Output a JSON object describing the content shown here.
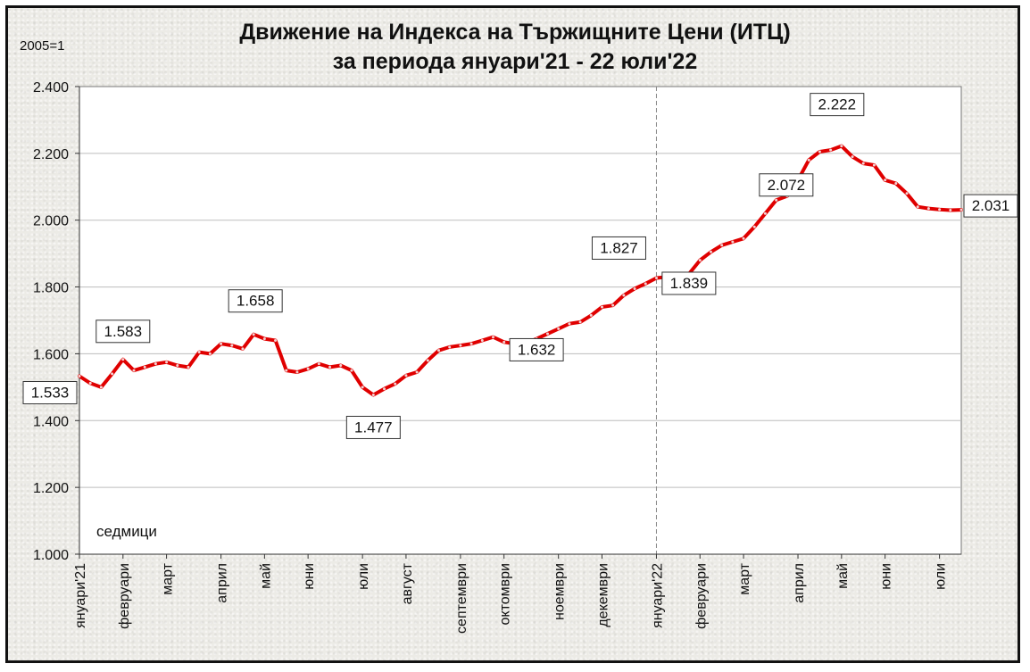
{
  "chart_data": {
    "type": "line",
    "title": "Движение на Индекса на Тържищните Цени (ИТЦ)",
    "subtitle": "за периода януари'21 - 22 юли'22",
    "unit_label": "2005=1",
    "xlabel": "седмици",
    "ylim": [
      1.0,
      2.4
    ],
    "y_ticks": [
      "1.000",
      "1.200",
      "1.400",
      "1.600",
      "1.800",
      "2.000",
      "2.200",
      "2.400"
    ],
    "grid": true,
    "year_divider_week": 53,
    "x_ticks": [
      {
        "label": "януари'21",
        "week": 0
      },
      {
        "label": "февруари",
        "week": 4
      },
      {
        "label": "март",
        "week": 8
      },
      {
        "label": "април",
        "week": 13
      },
      {
        "label": "май",
        "week": 17
      },
      {
        "label": "юни",
        "week": 21
      },
      {
        "label": "юли",
        "week": 26
      },
      {
        "label": "август",
        "week": 30
      },
      {
        "label": "септември",
        "week": 35
      },
      {
        "label": "октомври",
        "week": 39
      },
      {
        "label": "ноември",
        "week": 44
      },
      {
        "label": "декември",
        "week": 48
      },
      {
        "label": "януари'22",
        "week": 53
      },
      {
        "label": "февруари",
        "week": 57
      },
      {
        "label": "март",
        "week": 61
      },
      {
        "label": "април",
        "week": 66
      },
      {
        "label": "май",
        "week": 70
      },
      {
        "label": "юни",
        "week": 74
      },
      {
        "label": "юли",
        "week": 79
      }
    ],
    "series": [
      {
        "color": "#e00000",
        "weeks": [
          0,
          1,
          2,
          3,
          4,
          5,
          6,
          7,
          8,
          9,
          10,
          11,
          12,
          13,
          14,
          15,
          16,
          17,
          18,
          19,
          20,
          21,
          22,
          23,
          24,
          25,
          26,
          27,
          28,
          29,
          30,
          31,
          32,
          33,
          34,
          35,
          36,
          37,
          38,
          39,
          40,
          41,
          42,
          43,
          44,
          45,
          46,
          47,
          48,
          49,
          50,
          51,
          52,
          53,
          54,
          55,
          56,
          57,
          58,
          59,
          60,
          61,
          62,
          63,
          64,
          65,
          66,
          67,
          68,
          69,
          70,
          71,
          72,
          73,
          74,
          75,
          76,
          77,
          78,
          79,
          80,
          81
        ],
        "values": [
          1.533,
          1.512,
          1.5,
          1.54,
          1.583,
          1.55,
          1.56,
          1.57,
          1.575,
          1.565,
          1.56,
          1.605,
          1.6,
          1.63,
          1.625,
          1.615,
          1.658,
          1.645,
          1.64,
          1.55,
          1.545,
          1.555,
          1.57,
          1.56,
          1.565,
          1.55,
          1.5,
          1.477,
          1.495,
          1.51,
          1.535,
          1.545,
          1.58,
          1.61,
          1.62,
          1.625,
          1.63,
          1.64,
          1.65,
          1.635,
          1.63,
          1.632,
          1.645,
          1.66,
          1.675,
          1.69,
          1.695,
          1.715,
          1.74,
          1.745,
          1.775,
          1.795,
          1.81,
          1.827,
          1.83,
          1.839,
          1.84,
          1.88,
          1.905,
          1.925,
          1.935,
          1.945,
          1.98,
          2.02,
          2.06,
          2.072,
          2.12,
          2.18,
          2.205,
          2.21,
          2.222,
          2.19,
          2.17,
          2.165,
          2.12,
          2.11,
          2.08,
          2.04,
          2.035,
          2.032,
          2.03,
          2.031
        ]
      }
    ],
    "annotations": [
      {
        "text": "1.533",
        "week": 0,
        "value": 1.533
      },
      {
        "text": "1.583",
        "week": 4,
        "value": 1.583
      },
      {
        "text": "1.658",
        "week": 16,
        "value": 1.658
      },
      {
        "text": "1.477",
        "week": 27,
        "value": 1.477
      },
      {
        "text": "1.632",
        "week": 41,
        "value": 1.632
      },
      {
        "text": "1.827",
        "week": 53,
        "value": 1.827
      },
      {
        "text": "1.839",
        "week": 55,
        "value": 1.839
      },
      {
        "text": "2.072",
        "week": 65,
        "value": 2.072
      },
      {
        "text": "2.222",
        "week": 70,
        "value": 2.222
      },
      {
        "text": "2.031",
        "week": 81,
        "value": 2.031
      }
    ]
  }
}
